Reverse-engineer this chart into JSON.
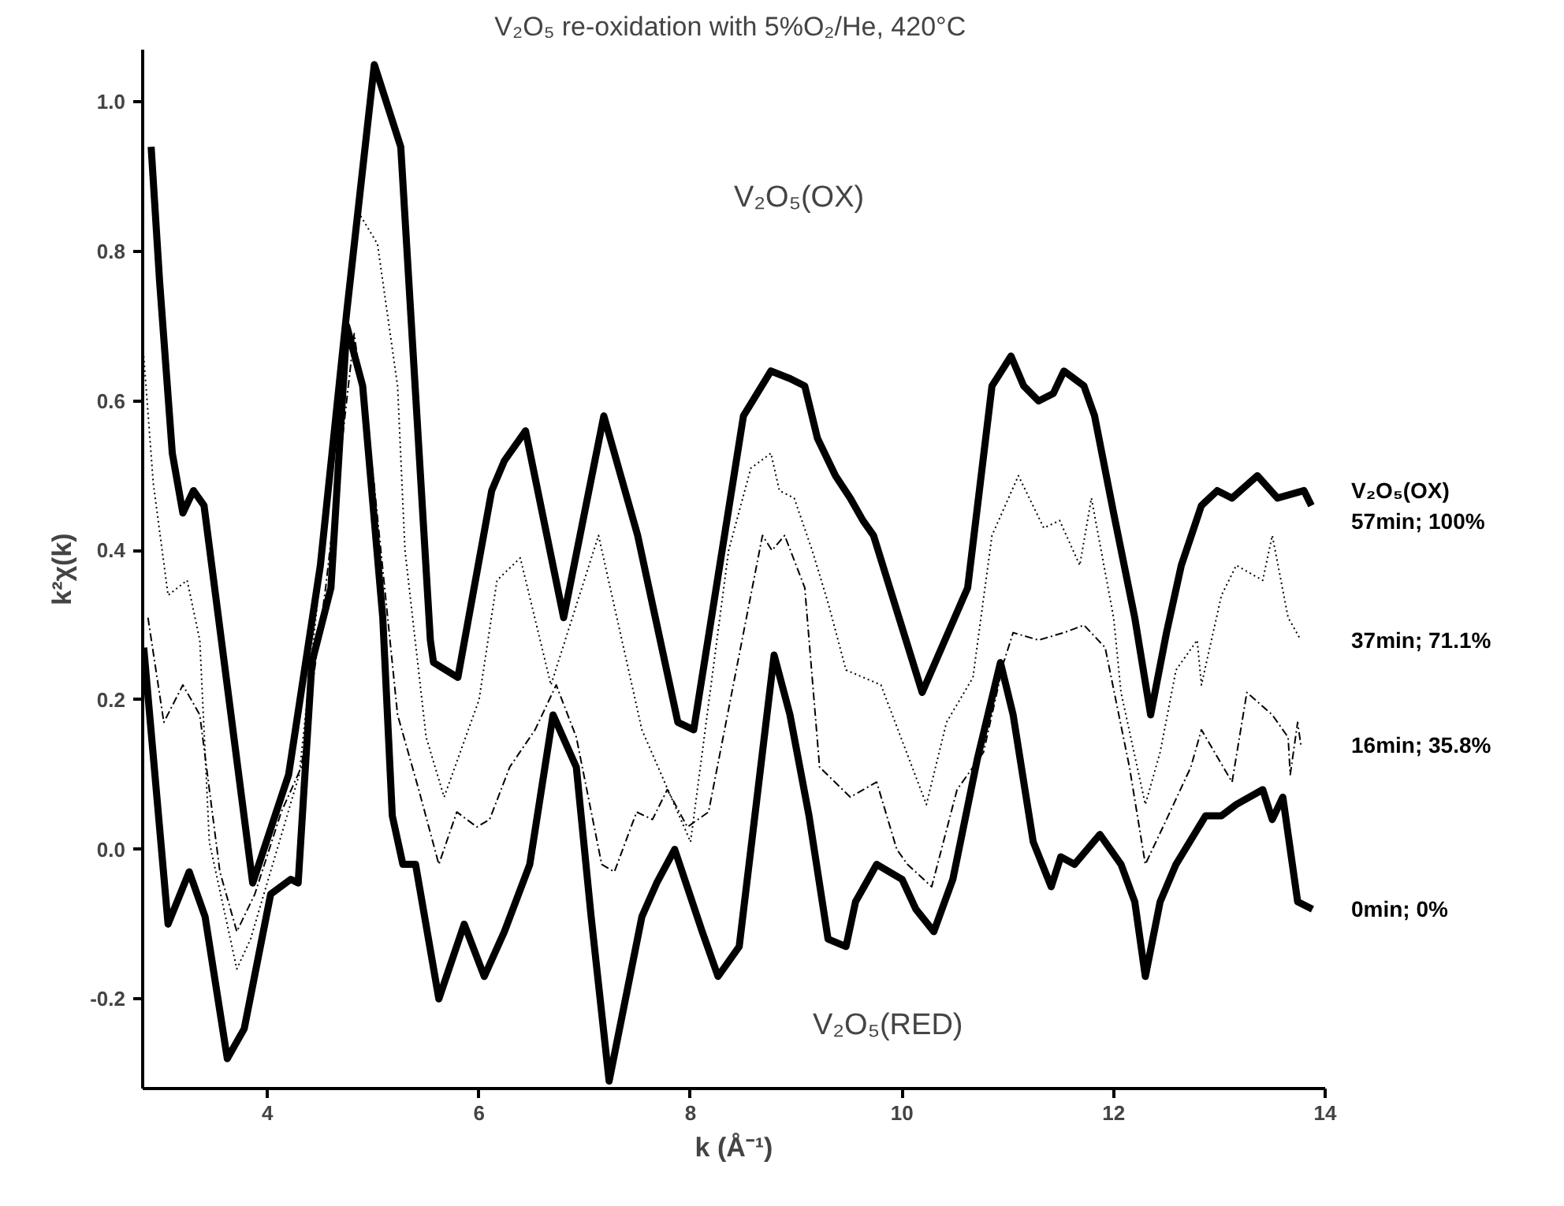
{
  "chart_data": {
    "type": "line",
    "title": "V₂O₅  re-oxidation with 5%O₂/He, 420°C",
    "xlabel": "k (Å⁻¹)",
    "ylabel": "k²χ(k)",
    "xlim": [
      2.82,
      14
    ],
    "xticks": [
      4,
      6,
      8,
      10,
      12,
      14
    ],
    "ylim": [
      -0.32,
      1.07
    ],
    "yticks": [
      -0.2,
      {
        "value": 0,
        "label": "0.0"
      },
      0.2,
      0.4,
      0.6,
      0.8,
      {
        "value": 1,
        "label": "1.0"
      }
    ],
    "grid": false,
    "marker": "none",
    "annotations": [
      "V₂O₅(OX)",
      "V₂O₅(RED)"
    ],
    "series": [
      {
        "name": "V₂O₅(OX)\n57min; 100%",
        "color": "#000000",
        "line_style": "solid",
        "x": [
          2.9,
          2.98,
          3.1,
          3.2,
          3.3,
          3.4,
          3.86,
          4.2,
          4.5,
          4.75,
          5.01,
          5.26,
          5.54,
          5.57,
          5.8,
          6.12,
          6.24,
          6.44,
          6.8,
          7.18,
          7.5,
          7.88,
          8.03,
          8.5,
          8.76,
          8.94,
          9.08,
          9.2,
          9.37,
          9.51,
          9.63,
          9.73,
          10.19,
          10.62,
          10.85,
          11.03,
          11.15,
          11.29,
          11.43,
          11.53,
          11.72,
          11.82,
          12.0,
          12.2,
          12.35,
          12.5,
          12.64,
          12.83,
          12.98,
          13.12,
          13.36,
          13.55,
          13.8,
          13.87
        ],
        "values": [
          0.94,
          0.76,
          0.53,
          0.45,
          0.48,
          0.46,
          -0.045,
          0.1,
          0.38,
          0.72,
          1.05,
          0.94,
          0.28,
          0.25,
          0.23,
          0.48,
          0.52,
          0.56,
          0.31,
          0.58,
          0.42,
          0.17,
          0.16,
          0.58,
          0.64,
          0.63,
          0.62,
          0.55,
          0.5,
          0.47,
          0.44,
          0.42,
          0.21,
          0.35,
          0.62,
          0.66,
          0.62,
          0.6,
          0.61,
          0.64,
          0.62,
          0.58,
          0.45,
          0.31,
          0.18,
          0.29,
          0.38,
          0.46,
          0.48,
          0.47,
          0.5,
          0.47,
          0.48,
          0.46
        ]
      },
      {
        "name": "37min; 71.1%",
        "color": "#000000",
        "line_style": "dotted",
        "x": [
          2.83,
          2.92,
          3.06,
          3.24,
          3.36,
          3.45,
          3.71,
          3.84,
          4.3,
          4.6,
          4.87,
          5.04,
          5.23,
          5.3,
          5.5,
          5.67,
          6.0,
          6.17,
          6.39,
          6.68,
          7.13,
          7.54,
          8.0,
          8.36,
          8.57,
          8.76,
          8.84,
          8.98,
          9.15,
          9.3,
          9.47,
          9.8,
          10.23,
          10.42,
          10.67,
          10.85,
          11.1,
          11.34,
          11.49,
          11.68,
          11.79,
          12.0,
          12.07,
          12.3,
          12.44,
          12.59,
          12.79,
          12.83,
          13.02,
          13.16,
          13.41,
          13.5,
          13.65,
          13.77
        ],
        "values": [
          0.66,
          0.49,
          0.34,
          0.36,
          0.28,
          0.01,
          -0.16,
          -0.12,
          0.1,
          0.5,
          0.85,
          0.81,
          0.62,
          0.4,
          0.15,
          0.07,
          0.2,
          0.36,
          0.39,
          0.22,
          0.42,
          0.16,
          0.01,
          0.4,
          0.51,
          0.53,
          0.48,
          0.47,
          0.4,
          0.33,
          0.24,
          0.22,
          0.06,
          0.17,
          0.23,
          0.42,
          0.5,
          0.43,
          0.44,
          0.38,
          0.47,
          0.31,
          0.21,
          0.06,
          0.13,
          0.24,
          0.28,
          0.22,
          0.34,
          0.38,
          0.36,
          0.42,
          0.31,
          0.28
        ]
      },
      {
        "name": "16min; 35.8%",
        "color": "#000000",
        "line_style": "dashed",
        "x": [
          2.87,
          3.02,
          3.2,
          3.36,
          3.55,
          3.71,
          3.88,
          4.13,
          4.32,
          4.55,
          4.82,
          5.0,
          5.23,
          5.43,
          5.62,
          5.79,
          5.98,
          6.1,
          6.29,
          6.53,
          6.73,
          6.92,
          7.16,
          7.28,
          7.49,
          7.64,
          7.78,
          7.97,
          8.17,
          8.68,
          8.77,
          8.89,
          9.08,
          9.22,
          9.51,
          9.76,
          9.95,
          10.05,
          10.28,
          10.52,
          10.77,
          10.96,
          11.05,
          11.29,
          11.53,
          11.72,
          11.92,
          12.15,
          12.3,
          12.5,
          12.73,
          12.83,
          13.12,
          13.26,
          13.5,
          13.65,
          13.67,
          13.74,
          13.77
        ],
        "values": [
          0.31,
          0.17,
          0.22,
          0.18,
          -0.03,
          -0.11,
          -0.06,
          0.05,
          0.11,
          0.35,
          0.69,
          0.5,
          0.18,
          0.08,
          -0.02,
          0.05,
          0.03,
          0.04,
          0.11,
          0.16,
          0.22,
          0.15,
          -0.02,
          -0.03,
          0.05,
          0.04,
          0.08,
          0.03,
          0.05,
          0.42,
          0.4,
          0.42,
          0.35,
          0.11,
          0.07,
          0.09,
          0.0,
          -0.02,
          -0.05,
          0.08,
          0.13,
          0.25,
          0.29,
          0.28,
          0.29,
          0.3,
          0.27,
          0.11,
          -0.02,
          0.04,
          0.11,
          0.16,
          0.09,
          0.21,
          0.18,
          0.15,
          0.1,
          0.17,
          0.14
        ]
      },
      {
        "name": "0min; 0%",
        "color": "#000000",
        "line_style": "solid",
        "x": [
          2.83,
          3.06,
          3.26,
          3.41,
          3.62,
          3.78,
          4.03,
          4.22,
          4.29,
          4.42,
          4.6,
          4.75,
          4.9,
          5.09,
          5.18,
          5.28,
          5.4,
          5.62,
          5.86,
          6.05,
          6.24,
          6.48,
          6.7,
          6.92,
          7.06,
          7.23,
          7.54,
          7.68,
          7.85,
          8.11,
          8.26,
          8.46,
          8.79,
          8.94,
          9.12,
          9.3,
          9.47,
          9.56,
          9.76,
          10.0,
          10.13,
          10.3,
          10.48,
          10.71,
          10.93,
          11.05,
          11.24,
          11.41,
          11.5,
          11.63,
          11.87,
          12.07,
          12.2,
          12.3,
          12.44,
          12.59,
          12.87,
          13.02,
          13.16,
          13.41,
          13.5,
          13.6,
          13.74,
          13.88
        ],
        "values": [
          0.27,
          -0.1,
          -0.03,
          -0.09,
          -0.28,
          -0.24,
          -0.06,
          -0.04,
          -0.045,
          0.25,
          0.35,
          0.7,
          0.62,
          0.31,
          0.045,
          -0.02,
          -0.02,
          -0.2,
          -0.1,
          -0.17,
          -0.11,
          -0.02,
          0.18,
          0.11,
          -0.09,
          -0.31,
          -0.09,
          -0.045,
          0.0,
          -0.11,
          -0.17,
          -0.13,
          0.26,
          0.18,
          0.045,
          -0.12,
          -0.13,
          -0.07,
          -0.02,
          -0.04,
          -0.08,
          -0.11,
          -0.04,
          0.12,
          0.25,
          0.18,
          0.01,
          -0.05,
          -0.01,
          -0.02,
          0.02,
          -0.02,
          -0.07,
          -0.17,
          -0.07,
          -0.02,
          0.045,
          0.045,
          0.06,
          0.08,
          0.04,
          0.07,
          -0.07,
          -0.08
        ]
      }
    ]
  }
}
